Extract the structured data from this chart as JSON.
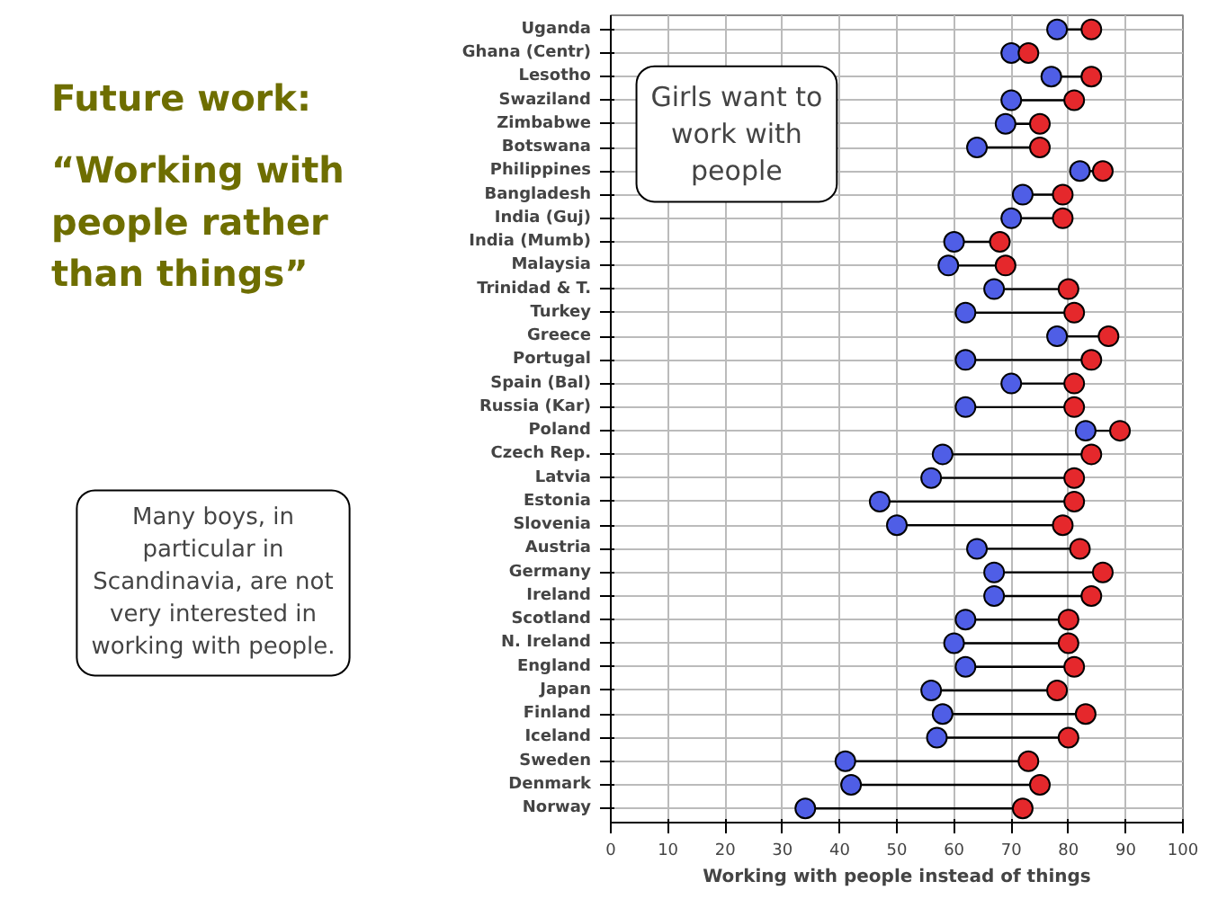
{
  "chart_data": {
    "type": "scatter",
    "title": "Future work:",
    "subtitle": "“Working with people rather than things”",
    "xlabel": "Working with people instead of things",
    "categories": [
      "Uganda",
      "Ghana (Centr)",
      "Lesotho",
      "Swaziland",
      "Zimbabwe",
      "Botswana",
      "Philippines",
      "Bangladesh",
      "India (Guj)",
      "India (Mumb)",
      "Malaysia",
      "Trinidad & T.",
      "Turkey",
      "Greece",
      "Portugal",
      "Spain (Bal)",
      "Russia (Kar)",
      "Poland",
      "Czech Rep.",
      "Latvia",
      "Estonia",
      "Slovenia",
      "Austria",
      "Germany",
      "Ireland",
      "Scotland",
      "N. Ireland",
      "England",
      "Japan",
      "Finland",
      "Iceland",
      "Sweden",
      "Denmark",
      "Norway"
    ],
    "series": [
      {
        "color": "#4f5ee6",
        "values": [
          78,
          70,
          77,
          70,
          69,
          64,
          82,
          72,
          70,
          60,
          59,
          67,
          62,
          78,
          62,
          70,
          62,
          83,
          58,
          56,
          47,
          50,
          64,
          67,
          67,
          62,
          60,
          62,
          56,
          58,
          57,
          41,
          42,
          34
        ]
      },
      {
        "color": "#e5282c",
        "values": [
          84,
          73,
          84,
          81,
          75,
          75,
          86,
          79,
          79,
          68,
          69,
          80,
          81,
          87,
          84,
          81,
          81,
          89,
          84,
          81,
          81,
          79,
          82,
          86,
          84,
          80,
          80,
          81,
          78,
          83,
          80,
          73,
          75,
          72
        ]
      }
    ],
    "xlim": [
      0,
      100
    ],
    "xticks": [
      0,
      10,
      20,
      30,
      40,
      50,
      60,
      70,
      80,
      90,
      100
    ],
    "grid": true,
    "marker": "circle",
    "orientation": "horizontal",
    "annotations": [
      "Girls want to work with people",
      "Many boys, in particular in Scandinavia, are not very interested in working with people."
    ]
  }
}
